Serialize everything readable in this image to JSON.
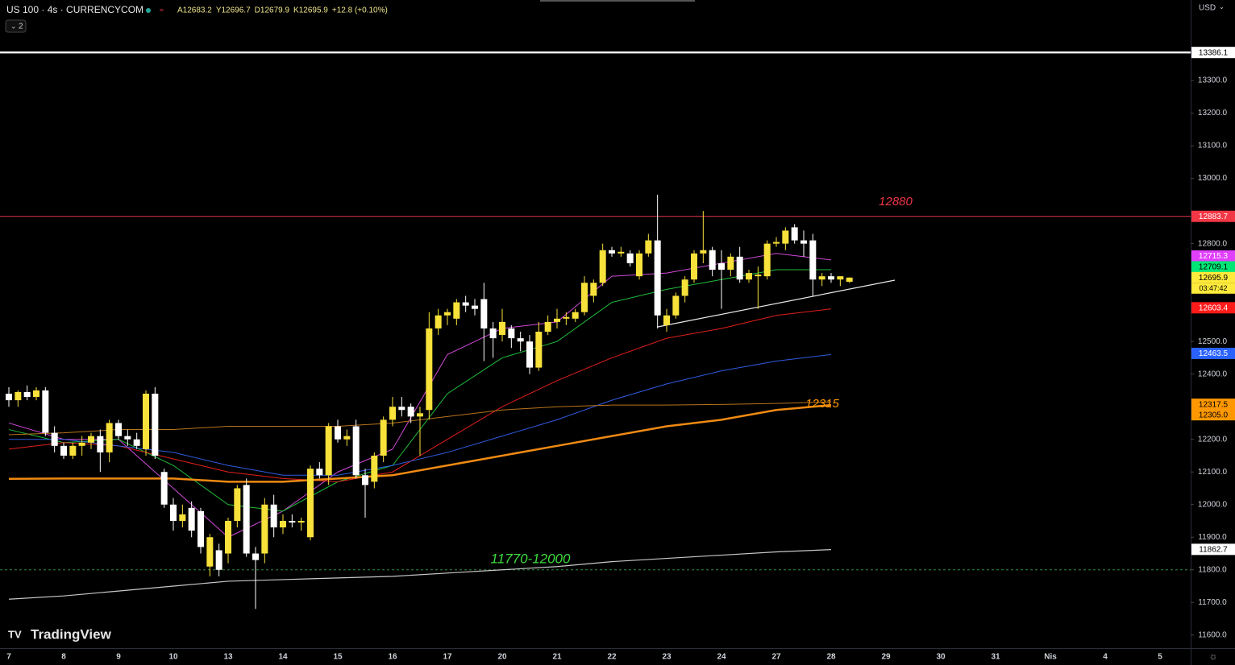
{
  "chart_data": {
    "type": "candlestick",
    "title": "US 100 · 4s · CURRENCYCOM",
    "legend_values": [
      "A12683.2",
      "Y12696.7",
      "D12679.9",
      "K12695.9",
      "+12.8 (+0.10%)"
    ],
    "indicator_count": "2",
    "currency": "USD",
    "brand": "TradingView",
    "countdown": "03:47:42",
    "categories": [
      "7",
      "8",
      "9",
      "10",
      "13",
      "14",
      "15",
      "16",
      "17",
      "20",
      "21",
      "22",
      "23",
      "24",
      "27",
      "28",
      "29",
      "30",
      "31",
      "Nis",
      "4",
      "5"
    ],
    "bull_color": "#f7e13a",
    "bear_color": "#ffffff",
    "open": [
      12340,
      12320,
      12345,
      12330,
      12350,
      12220,
      12180,
      12150,
      12180,
      12190,
      12210,
      12160,
      12250,
      12210,
      12200,
      12170,
      12340,
      12100,
      12000,
      11950,
      11990,
      11980,
      11810,
      11860,
      11850,
      11950,
      12060,
      11850,
      11850,
      12000,
      11930,
      11950,
      11945,
      11900,
      12110,
      12090,
      12240,
      12200,
      12240,
      12090,
      12070,
      12150,
      12260,
      12300,
      12300,
      12270,
      12290,
      12540,
      12580,
      12570,
      12620,
      12610,
      12630,
      12540,
      12520,
      12540,
      12510,
      12500,
      12420,
      12530,
      12560,
      12570,
      12570,
      12590,
      12640,
      12680,
      12780,
      12770,
      12770,
      12700,
      12770,
      12810,
      12550,
      12580,
      12640,
      12690,
      12770,
      12780,
      12740,
      12720,
      12760,
      12690,
      12700,
      12700,
      12800,
      12800,
      12850,
      12810,
      12810,
      12690,
      12700,
      12690,
      12683.2
    ],
    "high": [
      12360,
      12350,
      12365,
      12360,
      12360,
      12240,
      12190,
      12190,
      12210,
      12220,
      12230,
      12260,
      12260,
      12230,
      12220,
      12350,
      12360,
      12110,
      12020,
      12000,
      12010,
      11990,
      11910,
      11880,
      11960,
      12060,
      12080,
      11870,
      12020,
      12030,
      11970,
      11970,
      11960,
      12120,
      12130,
      12250,
      12260,
      12230,
      12260,
      12110,
      12160,
      12270,
      12330,
      12330,
      12310,
      12300,
      12590,
      12600,
      12600,
      12630,
      12640,
      12630,
      12680,
      12560,
      12600,
      12550,
      12530,
      12520,
      12560,
      12580,
      12600,
      12590,
      12600,
      12700,
      12690,
      12800,
      12790,
      12790,
      12780,
      12780,
      12830,
      12950,
      12600,
      12650,
      12700,
      12780,
      12900,
      12790,
      12780,
      12770,
      12790,
      12720,
      12730,
      12810,
      12820,
      12850,
      12860,
      12840,
      12830,
      12710,
      12710,
      12700,
      12696.7
    ],
    "low": [
      12300,
      12300,
      12320,
      12320,
      12210,
      12160,
      12140,
      12140,
      12150,
      12170,
      12100,
      12130,
      12200,
      12180,
      12170,
      12150,
      12140,
      11990,
      11920,
      11930,
      11900,
      11850,
      11780,
      11780,
      11820,
      11930,
      11840,
      11680,
      11820,
      11900,
      11910,
      11930,
      11920,
      11890,
      12080,
      12060,
      12190,
      12180,
      12080,
      11960,
      12050,
      12130,
      12240,
      12270,
      12250,
      12150,
      12260,
      12520,
      12550,
      12550,
      12590,
      12580,
      12440,
      12450,
      12500,
      12480,
      12470,
      12400,
      12410,
      12520,
      12540,
      12550,
      12560,
      12580,
      12620,
      12670,
      12760,
      12760,
      12730,
      12690,
      12760,
      12540,
      12530,
      12570,
      12620,
      12680,
      12740,
      12700,
      12600,
      12700,
      12680,
      12680,
      12600,
      12690,
      12790,
      12780,
      12800,
      12760,
      12640,
      12670,
      12680,
      12670,
      12679.9
    ],
    "close": [
      12320,
      12345,
      12330,
      12350,
      12220,
      12180,
      12150,
      12180,
      12190,
      12210,
      12160,
      12250,
      12210,
      12200,
      12180,
      12340,
      12150,
      12000,
      11950,
      11970,
      11920,
      11870,
      11900,
      11800,
      11950,
      12050,
      11850,
      11830,
      12000,
      11930,
      11950,
      11945,
      11950,
      12110,
      12090,
      12240,
      12200,
      12210,
      12090,
      12060,
      12150,
      12260,
      12300,
      12290,
      12270,
      12280,
      12540,
      12580,
      12590,
      12620,
      12610,
      12600,
      12540,
      12510,
      12560,
      12510,
      12500,
      12420,
      12530,
      12560,
      12570,
      12575,
      12590,
      12680,
      12680,
      12780,
      12770,
      12775,
      12740,
      12770,
      12810,
      12580,
      12580,
      12640,
      12690,
      12770,
      12780,
      12720,
      12720,
      12760,
      12690,
      12710,
      12705,
      12800,
      12805,
      12840,
      12810,
      12800,
      12690,
      12700,
      12690,
      12700,
      12695.9
    ],
    "series": [
      {
        "color": "#d04ad8",
        "width": 1,
        "values": [
          12250,
          12200,
          12200,
          12050,
          11900,
          11980,
          12100,
          12170,
          12460,
          12540,
          12560,
          12700,
          12710,
          12740,
          12770,
          12750,
          null,
          null,
          null,
          null,
          null,
          null
        ]
      },
      {
        "color": "#1fbf3a",
        "width": 1,
        "values": [
          12230,
          12190,
          12200,
          12120,
          12000,
          11980,
          12070,
          12120,
          12340,
          12450,
          12500,
          12620,
          12660,
          12690,
          12720,
          12720,
          null,
          null,
          null,
          null,
          null,
          null
        ]
      },
      {
        "color": "#e0201c",
        "width": 1,
        "values": [
          12170,
          12190,
          12180,
          12140,
          12100,
          12080,
          12070,
          12100,
          12200,
          12300,
          12380,
          12450,
          12510,
          12540,
          12580,
          12600,
          null,
          null,
          null,
          null,
          null,
          null
        ]
      },
      {
        "color": "#2f5be0",
        "width": 1,
        "values": [
          12200,
          12200,
          12180,
          12160,
          12120,
          12090,
          12090,
          12120,
          12160,
          12210,
          12260,
          12320,
          12370,
          12410,
          12440,
          12460,
          null,
          null,
          null,
          null,
          null,
          null
        ]
      },
      {
        "color": "#b8741c",
        "width": 1,
        "values": [
          12214,
          12220,
          12230,
          12230,
          12240,
          12240,
          12240,
          12250,
          12270,
          12290,
          12300,
          12305,
          12305,
          12307,
          12310,
          12315,
          null,
          null,
          null,
          null,
          null,
          null
        ]
      },
      {
        "color": "#f08a12",
        "width": 2.5,
        "values": [
          12079,
          12080,
          12080,
          12080,
          12070,
          12070,
          12080,
          12090,
          12120,
          12150,
          12180,
          12210,
          12240,
          12260,
          12290,
          12305,
          null,
          null,
          null,
          null,
          null,
          null
        ]
      },
      {
        "color": "#c8c8c8",
        "width": 1.2,
        "values": [
          11710,
          11720,
          11735,
          11750,
          11765,
          11770,
          11775,
          11780,
          11790,
          11800,
          11810,
          11825,
          11835,
          11845,
          11855,
          11862,
          null,
          null,
          null,
          null,
          null,
          null
        ]
      }
    ],
    "levels": [
      {
        "value": 13386.1,
        "color": "#ffffff",
        "width": 2.5
      },
      {
        "value": 12883.7,
        "color": "#e8364f",
        "width": 1
      },
      {
        "value": 11800,
        "color": "#2e8b3e",
        "width": 1,
        "dashed": true
      }
    ],
    "price_labels": [
      {
        "value": 13386.1,
        "color": "#ffffff",
        "text_color": "#000000"
      },
      {
        "value": 12883.7,
        "color": "#f23645",
        "text_color": "#ffffff"
      },
      {
        "value": 12715.3,
        "color": "#e040fb",
        "text_color": "#ffffff"
      },
      {
        "value": 12709.1,
        "color": "#00e676",
        "text_color": "#000000"
      },
      {
        "value": 12695.9,
        "color": "#ffeb3b",
        "text_color": "#000000"
      },
      {
        "value": 12603.4,
        "color": "#ff1a1a",
        "text_color": "#ffffff"
      },
      {
        "value": 12463.5,
        "color": "#2962ff",
        "text_color": "#ffffff"
      },
      {
        "value": 12317.5,
        "color": "#ff9800",
        "text_color": "#000000"
      },
      {
        "value": 12305,
        "label": "12305.0",
        "color": "#ff9800",
        "text_color": "#000000"
      },
      {
        "value": 11862.7,
        "color": "#ffffff",
        "text_color": "#000000"
      }
    ],
    "annotations": [
      {
        "text": "12880",
        "color": "#f23645"
      },
      {
        "text": "12315",
        "color": "#ff9800"
      },
      {
        "text": "11770-12000",
        "color": "#3ddc3d"
      }
    ],
    "ylim": [
      11560,
      13547
    ],
    "yticks": [
      {
        "value": 13300,
        "label": "13300.0"
      },
      {
        "value": 13200,
        "label": "13200.0"
      },
      {
        "value": 13100,
        "label": "13100.0"
      },
      {
        "value": 13000,
        "label": "13000.0"
      },
      {
        "value": 12800,
        "label": "12800.0"
      },
      {
        "value": 12500,
        "label": "12500.0"
      },
      {
        "value": 12400,
        "label": "12400.0"
      },
      {
        "value": 12200,
        "label": "12200.0"
      },
      {
        "value": 12100,
        "label": "12100.0"
      },
      {
        "value": 12000,
        "label": "12000.0"
      },
      {
        "value": 11900,
        "label": "11900.0"
      },
      {
        "value": 11800,
        "label": "11800.0"
      },
      {
        "value": 11700,
        "label": "11700.0"
      },
      {
        "value": 11600,
        "label": "11600.0"
      }
    ]
  }
}
